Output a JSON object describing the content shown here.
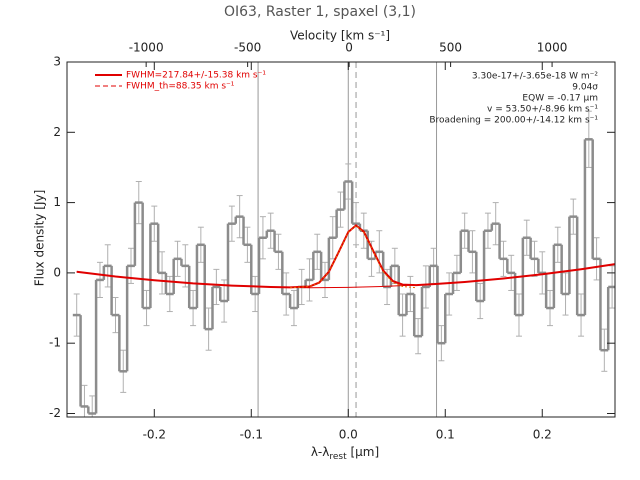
{
  "chart_data": {
    "type": "step",
    "title": "OI63, Raster 1, spaxel (3,1)",
    "xlabel": {
      "main": "λ-λ",
      "sub": "rest",
      "unit": " [μm]"
    },
    "ylabel": "Flux density [Jy]",
    "x2label": "Velocity [km s⁻¹]",
    "xlim": [
      -0.29,
      0.275
    ],
    "xticks": [
      -0.2,
      -0.1,
      {
        "value": 0,
        "label": "0.0"
      },
      0.1,
      0.2
    ],
    "x2lim": [
      -1390,
      1310
    ],
    "x2ticks": [
      -1000,
      -500,
      0,
      500,
      1000
    ],
    "ylim": [
      -2.05,
      3
    ],
    "yticks": [
      -2,
      -1,
      0,
      1,
      2,
      3
    ],
    "color": "#8c8c8c",
    "error_color": "#b0b0b0",
    "x": [
      -0.28,
      -0.272,
      -0.264,
      -0.256,
      -0.248,
      -0.24,
      -0.232,
      -0.224,
      -0.216,
      -0.208,
      -0.2,
      -0.192,
      -0.184,
      -0.176,
      -0.168,
      -0.16,
      -0.152,
      -0.144,
      -0.136,
      -0.128,
      -0.12,
      -0.112,
      -0.104,
      -0.096,
      -0.088,
      -0.08,
      -0.072,
      -0.064,
      -0.056,
      -0.048,
      -0.04,
      -0.032,
      -0.024,
      -0.016,
      -0.008,
      0.0,
      0.008,
      0.016,
      0.024,
      0.032,
      0.04,
      0.048,
      0.056,
      0.064,
      0.072,
      0.08,
      0.088,
      0.096,
      0.104,
      0.112,
      0.12,
      0.128,
      0.136,
      0.144,
      0.152,
      0.16,
      0.168,
      0.176,
      0.184,
      0.192,
      0.2,
      0.208,
      0.216,
      0.224,
      0.232,
      0.24,
      0.248,
      0.256,
      0.264,
      0.272
    ],
    "values": [
      -0.6,
      -1.9,
      -2.0,
      -0.1,
      0.1,
      -0.6,
      -1.4,
      0.1,
      1.0,
      -0.5,
      0.7,
      0.0,
      -0.3,
      0.2,
      0.1,
      -0.5,
      0.4,
      -0.8,
      -0.2,
      -0.4,
      0.7,
      0.8,
      0.4,
      -0.3,
      0.5,
      0.6,
      0.3,
      -0.3,
      -0.5,
      -0.2,
      -0.1,
      0.3,
      -0.1,
      0.5,
      0.9,
      1.3,
      0.7,
      0.6,
      0.2,
      0.3,
      -0.2,
      0.1,
      -0.6,
      -0.3,
      -0.9,
      -0.2,
      0.1,
      -1.0,
      -0.3,
      0.0,
      0.6,
      0.3,
      -0.4,
      0.6,
      0.7,
      0.2,
      0.0,
      -0.6,
      0.5,
      0.2,
      0.0,
      -0.5,
      0.4,
      -0.3,
      0.8,
      -0.6,
      1.9,
      0.2,
      -1.1,
      -0.2
    ],
    "errors": [
      0.3,
      0.3,
      0.25,
      0.25,
      0.3,
      0.25,
      0.3,
      0.25,
      0.3,
      0.25,
      0.25,
      0.3,
      0.25,
      0.25,
      0.3,
      0.25,
      0.25,
      0.3,
      0.25,
      0.3,
      0.25,
      0.3,
      0.25,
      0.25,
      0.3,
      0.25,
      0.25,
      0.3,
      0.25,
      0.25,
      0.3,
      0.25,
      0.25,
      0.3,
      0.25,
      0.25,
      0.3,
      0.25,
      0.25,
      0.3,
      0.25,
      0.25,
      0.3,
      0.25,
      0.25,
      0.3,
      0.25,
      0.25,
      0.3,
      0.25,
      0.25,
      0.3,
      0.25,
      0.25,
      0.3,
      0.25,
      0.25,
      0.3,
      0.25,
      0.25,
      0.3,
      0.25,
      0.25,
      0.3,
      0.25,
      0.3,
      0.4,
      0.3,
      0.3,
      0.3
    ],
    "curves": [
      {
        "color": "#e00000",
        "width": 2,
        "dash": "none",
        "x": [
          -0.28,
          -0.24,
          -0.2,
          -0.16,
          -0.12,
          -0.08,
          -0.06,
          -0.04,
          -0.03,
          -0.02,
          -0.01,
          0,
          0.008,
          0.016,
          0.026,
          0.036,
          0.046,
          0.056,
          0.07,
          0.09,
          0.12,
          0.16,
          0.2,
          0.24,
          0.275
        ],
        "values": [
          0.015,
          -0.051,
          -0.106,
          -0.149,
          -0.181,
          -0.201,
          -0.207,
          -0.194,
          -0.138,
          0.017,
          0.294,
          0.581,
          0.675,
          0.586,
          0.304,
          0.033,
          -0.117,
          -0.167,
          -0.174,
          -0.158,
          -0.129,
          -0.08,
          -0.02,
          0.052,
          0.125
        ]
      },
      {
        "color": "#e00000",
        "width": 1,
        "dash": "none",
        "x": [
          -0.28,
          -0.24,
          -0.2,
          -0.16,
          -0.12,
          -0.08,
          -0.04,
          0,
          0.04,
          0.08,
          0.12,
          0.16,
          0.2,
          0.24,
          0.275
        ],
        "values": [
          0.015,
          -0.051,
          -0.106,
          -0.149,
          -0.181,
          -0.201,
          -0.21,
          -0.207,
          -0.191,
          -0.167,
          -0.129,
          -0.08,
          -0.02,
          0.052,
          0.125
        ]
      },
      {
        "color": "#e86a00",
        "width": 1,
        "dash": "2 2",
        "x": [
          -0.06,
          -0.04,
          -0.03,
          -0.02,
          -0.01,
          0,
          0.008,
          0.016,
          0.026,
          0.036,
          0.046,
          0.056,
          0.07
        ],
        "values": [
          -0.21,
          -0.194,
          -0.138,
          0.017,
          0.293,
          0.578,
          0.67,
          0.578,
          0.293,
          0.017,
          -0.138,
          -0.194,
          -0.21
        ]
      }
    ],
    "vlines": [
      {
        "x": -0.093,
        "dashed": false
      },
      {
        "x": 0,
        "dashed": false
      },
      {
        "x": 0.008,
        "dashed": true
      },
      {
        "x": 0.091,
        "dashed": false
      }
    ],
    "legend": [
      {
        "label": "FWHM=217.84+/-15.38 km s⁻¹",
        "color": "#e00000",
        "dash": "none"
      },
      {
        "label": "FWHM_th=88.35 km s⁻¹",
        "color": "#e00000",
        "dash": "5 3"
      }
    ],
    "annotations": [
      "3.30e-17+/-3.65e-18 W m⁻²",
      "9.04σ",
      "EQW = -0.17 μm",
      "v = 53.50+/-8.96 km s⁻¹",
      "Broadening = 200.00+/-14.12 km s⁻¹"
    ]
  }
}
